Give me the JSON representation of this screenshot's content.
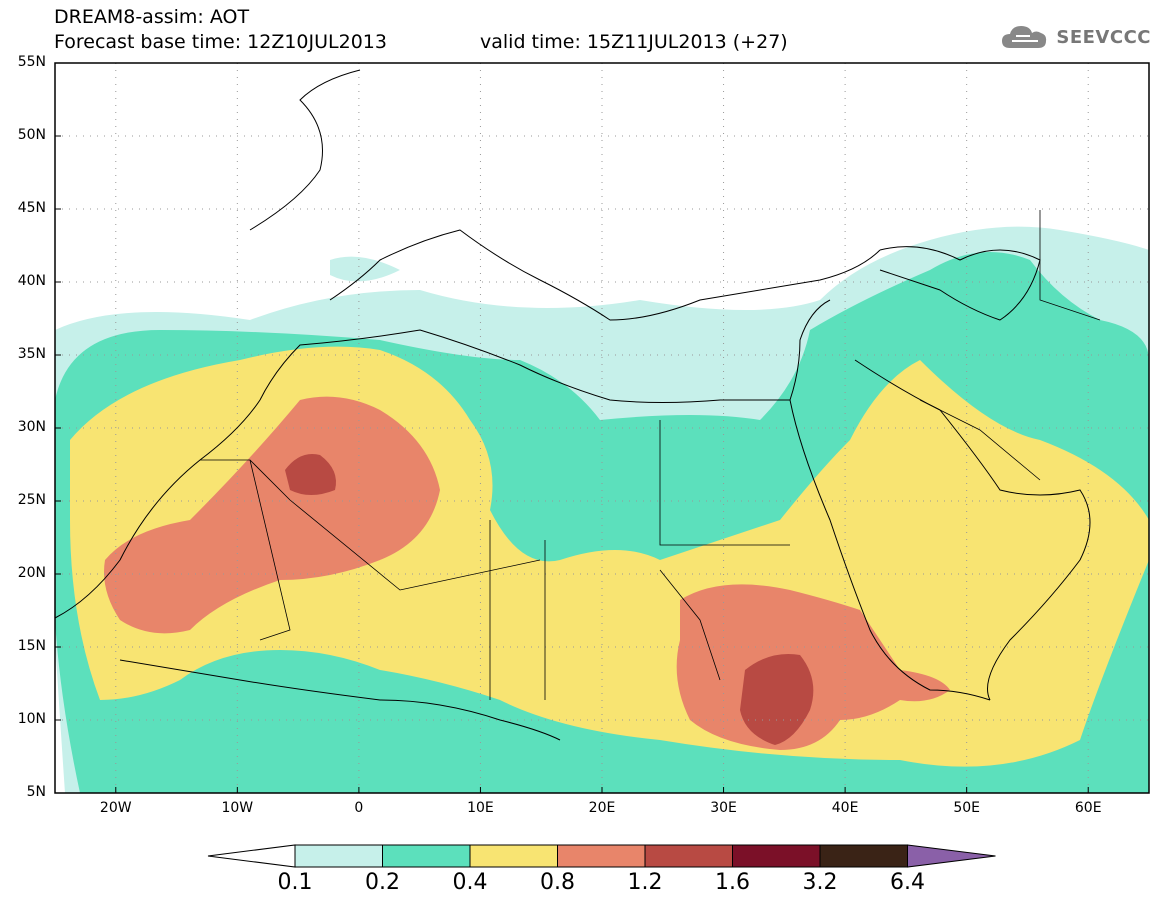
{
  "title": {
    "line1": "DREAM8-assim: AOT",
    "base_label": "Forecast base time: 12Z10JUL2013",
    "valid_label": "valid time: 15Z11JUL2013 (+27)"
  },
  "logo": {
    "text": "SEEVCCC",
    "icon": "cloud-icon"
  },
  "map": {
    "variable": "AOT",
    "lat_labels": [
      "55N",
      "50N",
      "45N",
      "40N",
      "35N",
      "30N",
      "25N",
      "20N",
      "15N",
      "10N",
      "5N"
    ],
    "lon_labels": [
      "20W",
      "10W",
      "0",
      "10E",
      "20E",
      "30E",
      "40E",
      "50E",
      "60E"
    ]
  },
  "colorbar": {
    "levels": [
      "0.1",
      "0.2",
      "0.4",
      "0.8",
      "1.2",
      "1.6",
      "3.2",
      "6.4"
    ],
    "colors": [
      "#ffffff",
      "#c6f0ea",
      "#5ce0bc",
      "#f8e472",
      "#e8856a",
      "#b84a43",
      "#7b1028",
      "#3a2316",
      "#8a60a8"
    ]
  }
}
